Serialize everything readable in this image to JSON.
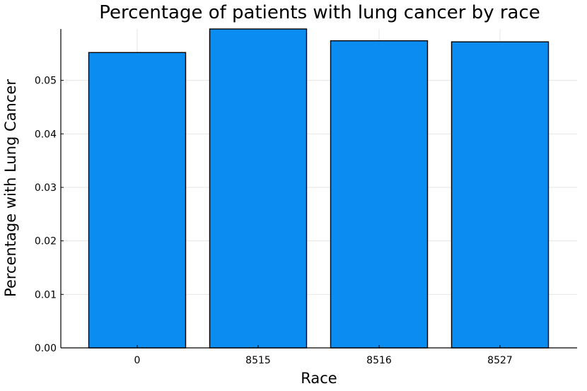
{
  "chart_data": {
    "type": "bar",
    "title": "Percentage of patients with lung cancer by race",
    "xlabel": "Race",
    "ylabel": "Percentage with Lung Cancer",
    "categories": [
      "0",
      "8515",
      "8516",
      "8527"
    ],
    "values": [
      0.0552,
      0.0596,
      0.0574,
      0.0572
    ],
    "ylim": [
      0,
      0.0596
    ],
    "yticks": [
      0.0,
      0.01,
      0.02,
      0.03,
      0.04,
      0.05
    ],
    "ytick_labels": [
      "0.00",
      "0.01",
      "0.02",
      "0.03",
      "0.04",
      "0.05"
    ],
    "grid": true,
    "legend": "none",
    "bar_color": "#0a8cf0"
  }
}
